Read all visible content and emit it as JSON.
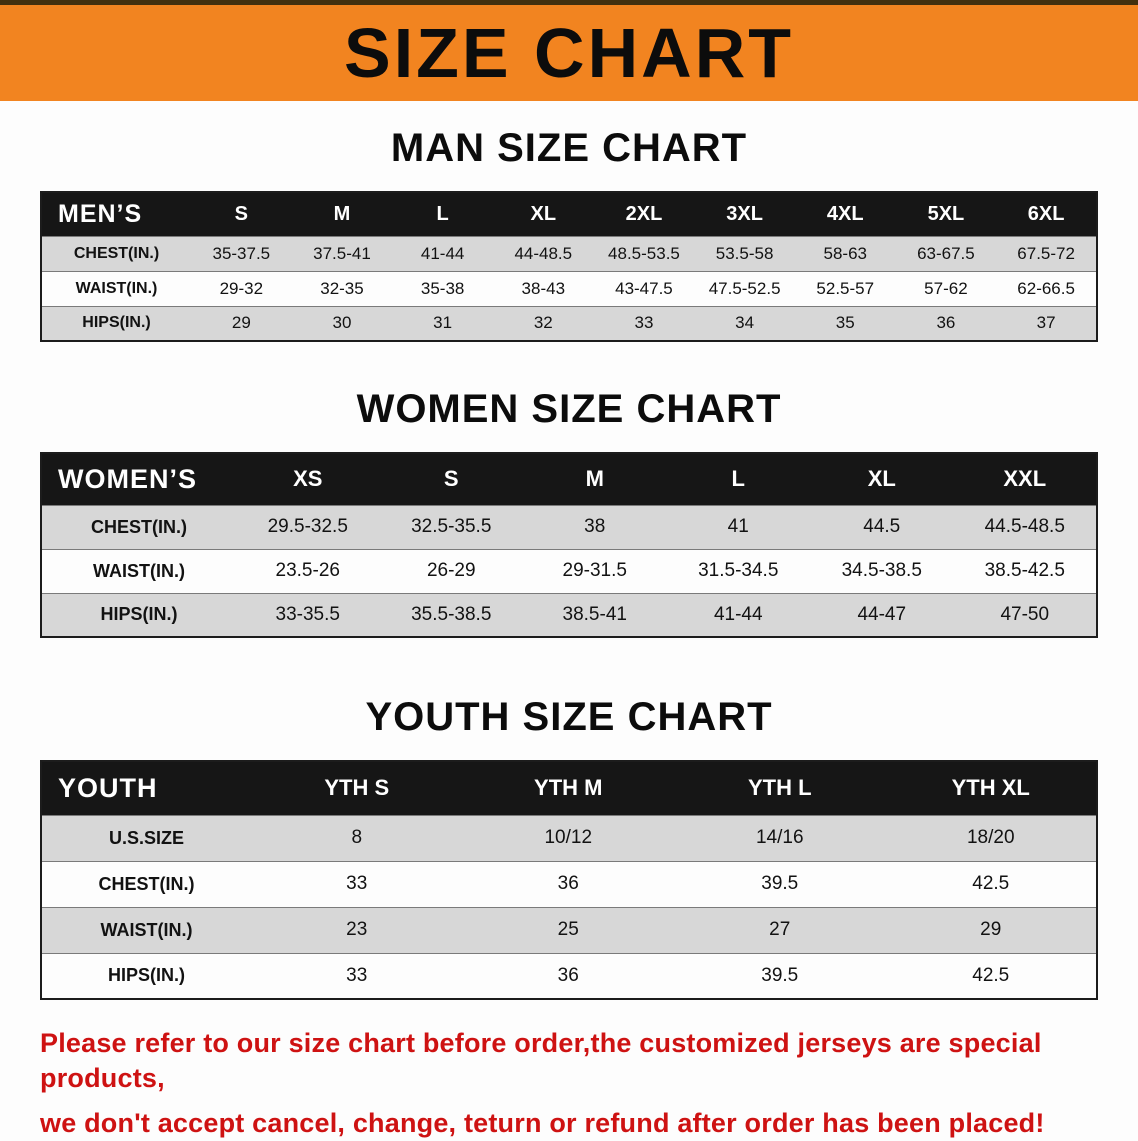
{
  "banner": {
    "title": "SIZE CHART",
    "bg_color": "#f28420",
    "text_color": "#0c0c0c"
  },
  "charts": [
    {
      "heading": "MAN SIZE CHART",
      "table": {
        "title": "MEN’S",
        "columns": [
          "S",
          "M",
          "L",
          "XL",
          "2XL",
          "3XL",
          "4XL",
          "5XL",
          "6XL"
        ],
        "rows": [
          {
            "label": "CHEST(IN.)",
            "values": [
              "35-37.5",
              "37.5-41",
              "41-44",
              "44-48.5",
              "48.5-53.5",
              "53.5-58",
              "58-63",
              "63-67.5",
              "67.5-72"
            ]
          },
          {
            "label": "WAIST(IN.)",
            "values": [
              "29-32",
              "32-35",
              "35-38",
              "38-43",
              "43-47.5",
              "47.5-52.5",
              "52.5-57",
              "57-62",
              "62-66.5"
            ]
          },
          {
            "label": "HIPS(IN.)",
            "values": [
              "29",
              "30",
              "31",
              "32",
              "33",
              "34",
              "35",
              "36",
              "37"
            ]
          }
        ]
      }
    },
    {
      "heading": "WOMEN SIZE CHART",
      "table": {
        "title": "WOMEN’S",
        "columns": [
          "XS",
          "S",
          "M",
          "L",
          "XL",
          "XXL"
        ],
        "rows": [
          {
            "label": "CHEST(IN.)",
            "values": [
              "29.5-32.5",
              "32.5-35.5",
              "38",
              "41",
              "44.5",
              "44.5-48.5"
            ]
          },
          {
            "label": "WAIST(IN.)",
            "values": [
              "23.5-26",
              "26-29",
              "29-31.5",
              "31.5-34.5",
              "34.5-38.5",
              "38.5-42.5"
            ]
          },
          {
            "label": "HIPS(IN.)",
            "values": [
              "33-35.5",
              "35.5-38.5",
              "38.5-41",
              "41-44",
              "44-47",
              "47-50"
            ]
          }
        ]
      }
    },
    {
      "heading": "YOUTH SIZE CHART",
      "table": {
        "title": "YOUTH",
        "columns": [
          "YTH S",
          "YTH M",
          "YTH L",
          "YTH XL"
        ],
        "rows": [
          {
            "label": "U.S.SIZE",
            "values": [
              "8",
              "10/12",
              "14/16",
              "18/20"
            ]
          },
          {
            "label": "CHEST(IN.)",
            "values": [
              "33",
              "36",
              "39.5",
              "42.5"
            ]
          },
          {
            "label": "WAIST(IN.)",
            "values": [
              "23",
              "25",
              "27",
              "29"
            ]
          },
          {
            "label": "HIPS(IN.)",
            "values": [
              "33",
              "36",
              "39.5",
              "42.5"
            ]
          }
        ]
      }
    }
  ],
  "footer": {
    "line1": "Please refer to our size chart before order,the customized jerseys are special products,",
    "line2": "we don't accept cancel, change, teturn or refund after order has been placed!",
    "text_color": "#ce1212"
  }
}
